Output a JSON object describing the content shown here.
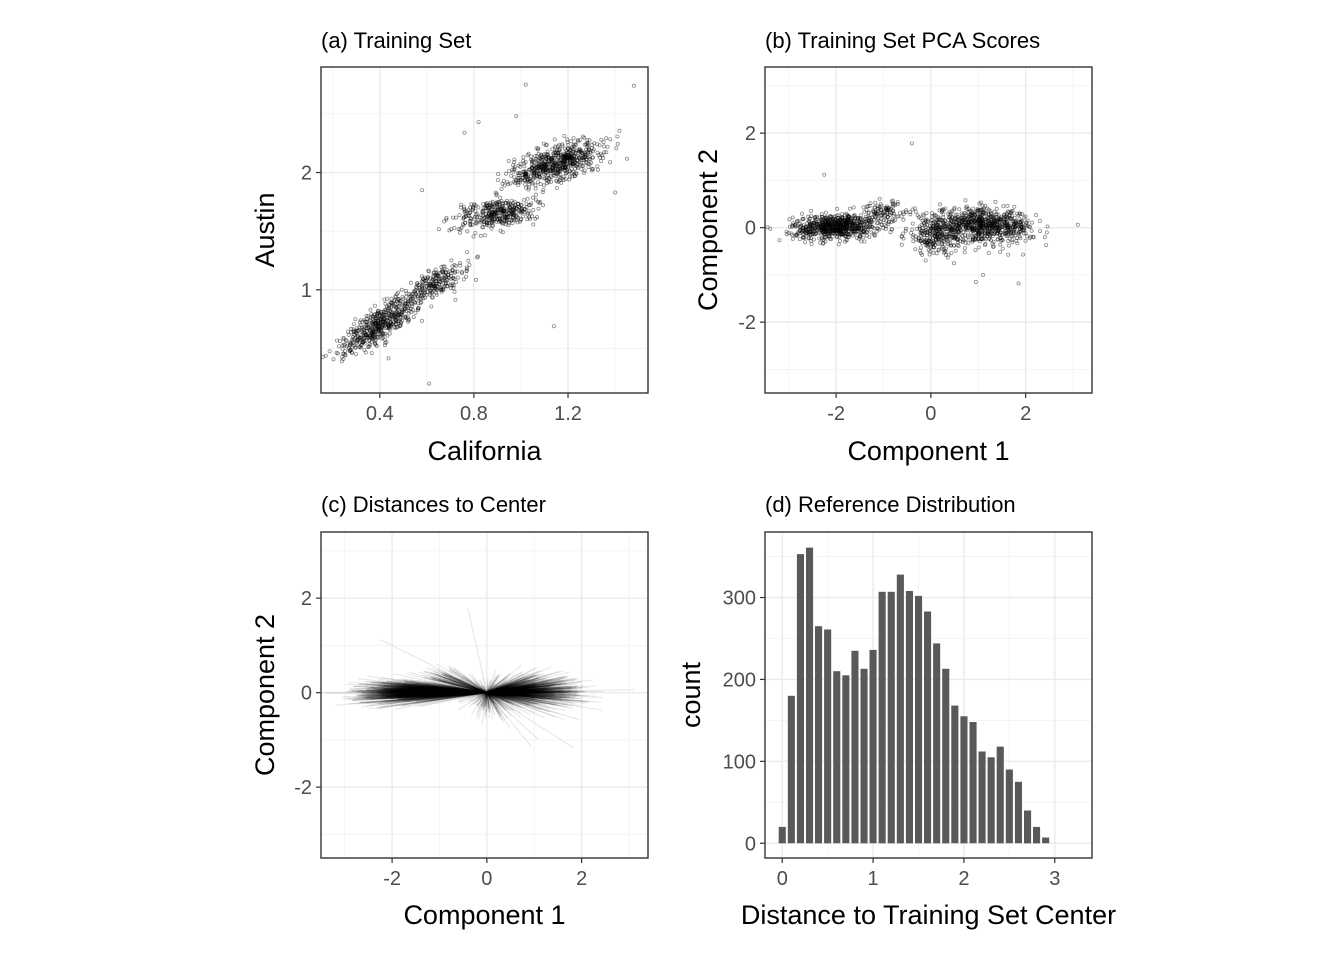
{
  "chart_data": [
    {
      "panel": "a",
      "type": "scatter",
      "title": "(a) Training Set",
      "xlabel": "California",
      "ylabel": "Austin",
      "xlim": [
        0.15,
        1.54
      ],
      "ylim": [
        0.12,
        2.9
      ],
      "xticks": [
        0.4,
        0.8,
        1.2
      ],
      "xtick_labels": [
        "0.4",
        "0.8",
        "1.2"
      ],
      "yticks": [
        1,
        2
      ],
      "ytick_labels": [
        "1",
        "2"
      ],
      "minor_x": [
        0.2,
        0.6,
        1.0,
        1.4
      ],
      "minor_y": [
        0.5,
        1.5,
        2.5
      ],
      "grid": true,
      "clusters": [
        {
          "cx": 0.4,
          "cy": 0.7,
          "sd_major": 0.14,
          "sd_minor": 0.045,
          "slope": 1.5,
          "n": 1500
        },
        {
          "cx": 0.63,
          "cy": 1.05,
          "sd_major": 0.1,
          "sd_minor": 0.04,
          "slope": 1.3,
          "n": 700
        },
        {
          "cx": 0.9,
          "cy": 1.65,
          "sd_major": 0.09,
          "sd_minor": 0.06,
          "slope": 0.6,
          "n": 1100
        },
        {
          "cx": 1.15,
          "cy": 2.08,
          "sd_major": 0.12,
          "sd_minor": 0.06,
          "slope": 0.9,
          "n": 1900
        }
      ],
      "outliers": [
        {
          "x": 1.02,
          "y": 2.75
        },
        {
          "x": 1.48,
          "y": 2.74
        },
        {
          "x": 1.14,
          "y": 0.69
        },
        {
          "x": 0.61,
          "y": 0.2
        },
        {
          "x": 0.98,
          "y": 2.48
        },
        {
          "x": 0.82,
          "y": 2.43
        },
        {
          "x": 1.4,
          "y": 1.83
        },
        {
          "x": 0.58,
          "y": 1.85
        },
        {
          "x": 0.76,
          "y": 2.34
        }
      ]
    },
    {
      "panel": "b",
      "type": "scatter",
      "title": "(b) Training Set PCA Scores",
      "xlabel": "Component 1",
      "ylabel": "Component 2",
      "xlim": [
        -3.5,
        3.4
      ],
      "ylim": [
        -3.5,
        3.4
      ],
      "xticks": [
        -2,
        0,
        2
      ],
      "xtick_labels": [
        "-2",
        "0",
        "2"
      ],
      "yticks": [
        -2,
        0,
        2
      ],
      "ytick_labels": [
        "-2",
        "0",
        "2"
      ],
      "minor_x": [
        -3,
        -1,
        1,
        3
      ],
      "minor_y": [
        -3,
        -1,
        1,
        3
      ],
      "grid": true,
      "clusters": [
        {
          "cx": -2.0,
          "cy": 0.02,
          "sd_major": 0.45,
          "sd_minor": 0.13,
          "slope": 0.05,
          "n": 2200
        },
        {
          "cx": -1.0,
          "cy": 0.35,
          "sd_major": 0.25,
          "sd_minor": 0.12,
          "slope": -0.2,
          "n": 300
        },
        {
          "cx": 0.15,
          "cy": -0.15,
          "sd_major": 0.35,
          "sd_minor": 0.2,
          "slope": 0.05,
          "n": 900
        },
        {
          "cx": 1.15,
          "cy": 0.05,
          "sd_major": 0.5,
          "sd_minor": 0.17,
          "slope": -0.05,
          "n": 2200
        }
      ],
      "outliers": [
        {
          "x": -0.4,
          "y": 1.78
        },
        {
          "x": -2.25,
          "y": 1.12
        },
        {
          "x": 3.1,
          "y": 0.06
        },
        {
          "x": 1.85,
          "y": -1.18
        },
        {
          "x": 0.95,
          "y": -1.15
        },
        {
          "x": 1.1,
          "y": -1.0
        }
      ]
    },
    {
      "panel": "c",
      "type": "line",
      "title": "(c) Distances to Center",
      "xlabel": "Component 1",
      "ylabel": "Component 2",
      "xlim": [
        -3.5,
        3.4
      ],
      "ylim": [
        -3.5,
        3.4
      ],
      "xticks": [
        -2,
        0,
        2
      ],
      "xtick_labels": [
        "-2",
        "0",
        "2"
      ],
      "yticks": [
        -2,
        0,
        2
      ],
      "ytick_labels": [
        "-2",
        "0",
        "2"
      ],
      "minor_x": [
        -3,
        -1,
        1,
        3
      ],
      "minor_y": [
        -3,
        -1,
        1,
        3
      ],
      "grid": true,
      "center": [
        0,
        0
      ],
      "segments_from_center_to_panel_b_points": true
    },
    {
      "panel": "d",
      "type": "bar",
      "title": "(d) Reference Distribution",
      "xlabel": "Distance to Training Set Center",
      "ylabel": "count",
      "xlim": [
        -0.19,
        3.41
      ],
      "ylim": [
        -18,
        380
      ],
      "xticks": [
        0,
        1,
        2,
        3
      ],
      "xtick_labels": [
        "0",
        "1",
        "2",
        "3"
      ],
      "yticks": [
        0,
        100,
        200,
        300
      ],
      "ytick_labels": [
        "0",
        "100",
        "200",
        "300"
      ],
      "minor_x": [
        0.5,
        1.5,
        2.5
      ],
      "minor_y": [
        50,
        150,
        250,
        350
      ],
      "grid": true,
      "bin_width": 0.1,
      "bin_centers": [
        0.0,
        0.1,
        0.2,
        0.3,
        0.4,
        0.5,
        0.6,
        0.7,
        0.8,
        0.9,
        1.0,
        1.1,
        1.2,
        1.3,
        1.4,
        1.5,
        1.6,
        1.7,
        1.8,
        1.9,
        2.0,
        2.1,
        2.2,
        2.3,
        2.4,
        2.5,
        2.6,
        2.7,
        2.8,
        2.9
      ],
      "values": [
        20,
        180,
        353,
        361,
        265,
        261,
        210,
        205,
        235,
        213,
        236,
        307,
        307,
        328,
        308,
        302,
        283,
        244,
        213,
        168,
        155,
        148,
        112,
        105,
        118,
        90,
        75,
        40,
        20,
        7
      ]
    }
  ]
}
